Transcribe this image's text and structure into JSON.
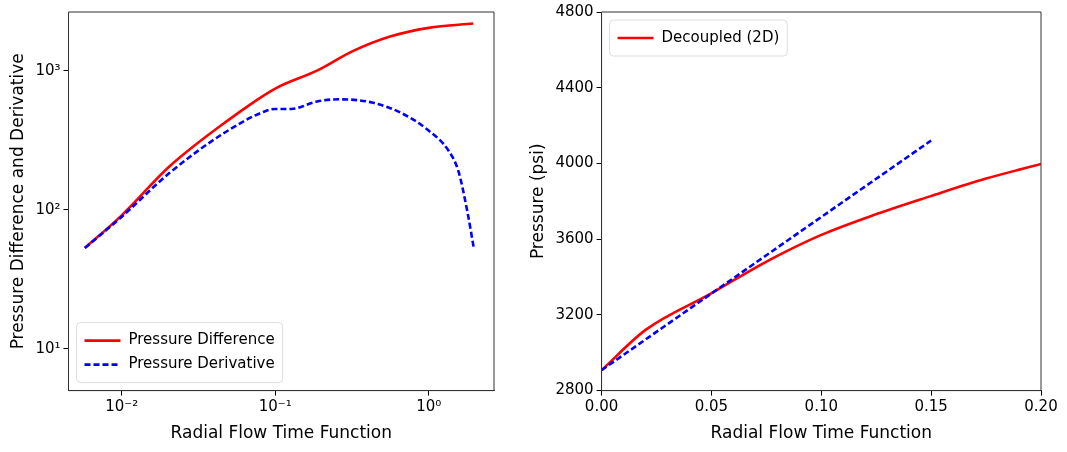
{
  "chart_data": [
    {
      "type": "line",
      "xlabel": "Radial Flow Time Function",
      "ylabel": "Pressure Difference and Derivative",
      "log": "xy",
      "grid": false,
      "legend": "bottom left",
      "marker": "none",
      "xlim": [
        0.0045,
        2.66
      ],
      "ylim": [
        5,
        2640
      ],
      "xticks": [
        {
          "value": 0.01,
          "label": "10⁻²"
        },
        {
          "value": 0.1,
          "label": "10⁻¹"
        },
        {
          "value": 1,
          "label": "10⁰"
        }
      ],
      "yticks": [
        {
          "value": 10,
          "label": "10¹"
        },
        {
          "value": 100,
          "label": "10²"
        },
        {
          "value": 1000,
          "label": "10³"
        }
      ],
      "series": [
        {
          "name": "Pressure Difference",
          "color": "#ff0000",
          "line_style": "solid",
          "x": [
            0.00575,
            0.01,
            0.0205,
            0.047,
            0.1,
            0.187,
            0.32,
            0.56,
            1.0,
            1.95
          ],
          "values": [
            53,
            91,
            205,
            423,
            743,
            1000,
            1380,
            1757,
            2030,
            2180
          ]
        },
        {
          "name": "Pressure Derivative",
          "color": "#0000ff",
          "line_style": "dashed",
          "x": [
            0.00575,
            0.01,
            0.0205,
            0.047,
            0.086,
            0.1,
            0.127,
            0.187,
            0.259,
            0.426,
            0.66,
            0.97,
            1.36,
            1.56,
            1.79,
            1.97
          ],
          "values": [
            53,
            89,
            184,
            359,
            511,
            530,
            530,
            600,
            622,
            590,
            497,
            380,
            261,
            189,
            95,
            52
          ]
        }
      ]
    },
    {
      "type": "line",
      "xlabel": "Radial Flow Time Function",
      "ylabel": "Pressure (psi)",
      "grid": false,
      "legend": "top left",
      "marker": "none",
      "xlim": [
        0,
        0.2
      ],
      "ylim": [
        2800,
        4800
      ],
      "xticks": [
        {
          "value": 0,
          "label": "0.00"
        },
        {
          "value": 0.05,
          "label": "0.05"
        },
        {
          "value": 0.1,
          "label": "0.10"
        },
        {
          "value": 0.15,
          "label": "0.15"
        },
        {
          "value": 0.2,
          "label": "0.20"
        }
      ],
      "yticks": [
        2800,
        3200,
        3600,
        4000,
        4400,
        4800
      ],
      "series": [
        {
          "name": "Decoupled (2D)",
          "color": "#ff0000",
          "line_style": "solid",
          "x": [
            0,
            0.0202,
            0.0495,
            0.0753,
            0.0995,
            0.1236,
            0.1495,
            0.175,
            0.2
          ],
          "values": [
            2908,
            3122,
            3311,
            3483,
            3620,
            3726,
            3826,
            3920,
            3997
          ]
        },
        {
          "color": "#0000ff",
          "line_style": "dashed",
          "x": [
            0,
            0.075,
            0.15
          ],
          "values": [
            2908,
            3515,
            4121
          ]
        }
      ]
    }
  ]
}
